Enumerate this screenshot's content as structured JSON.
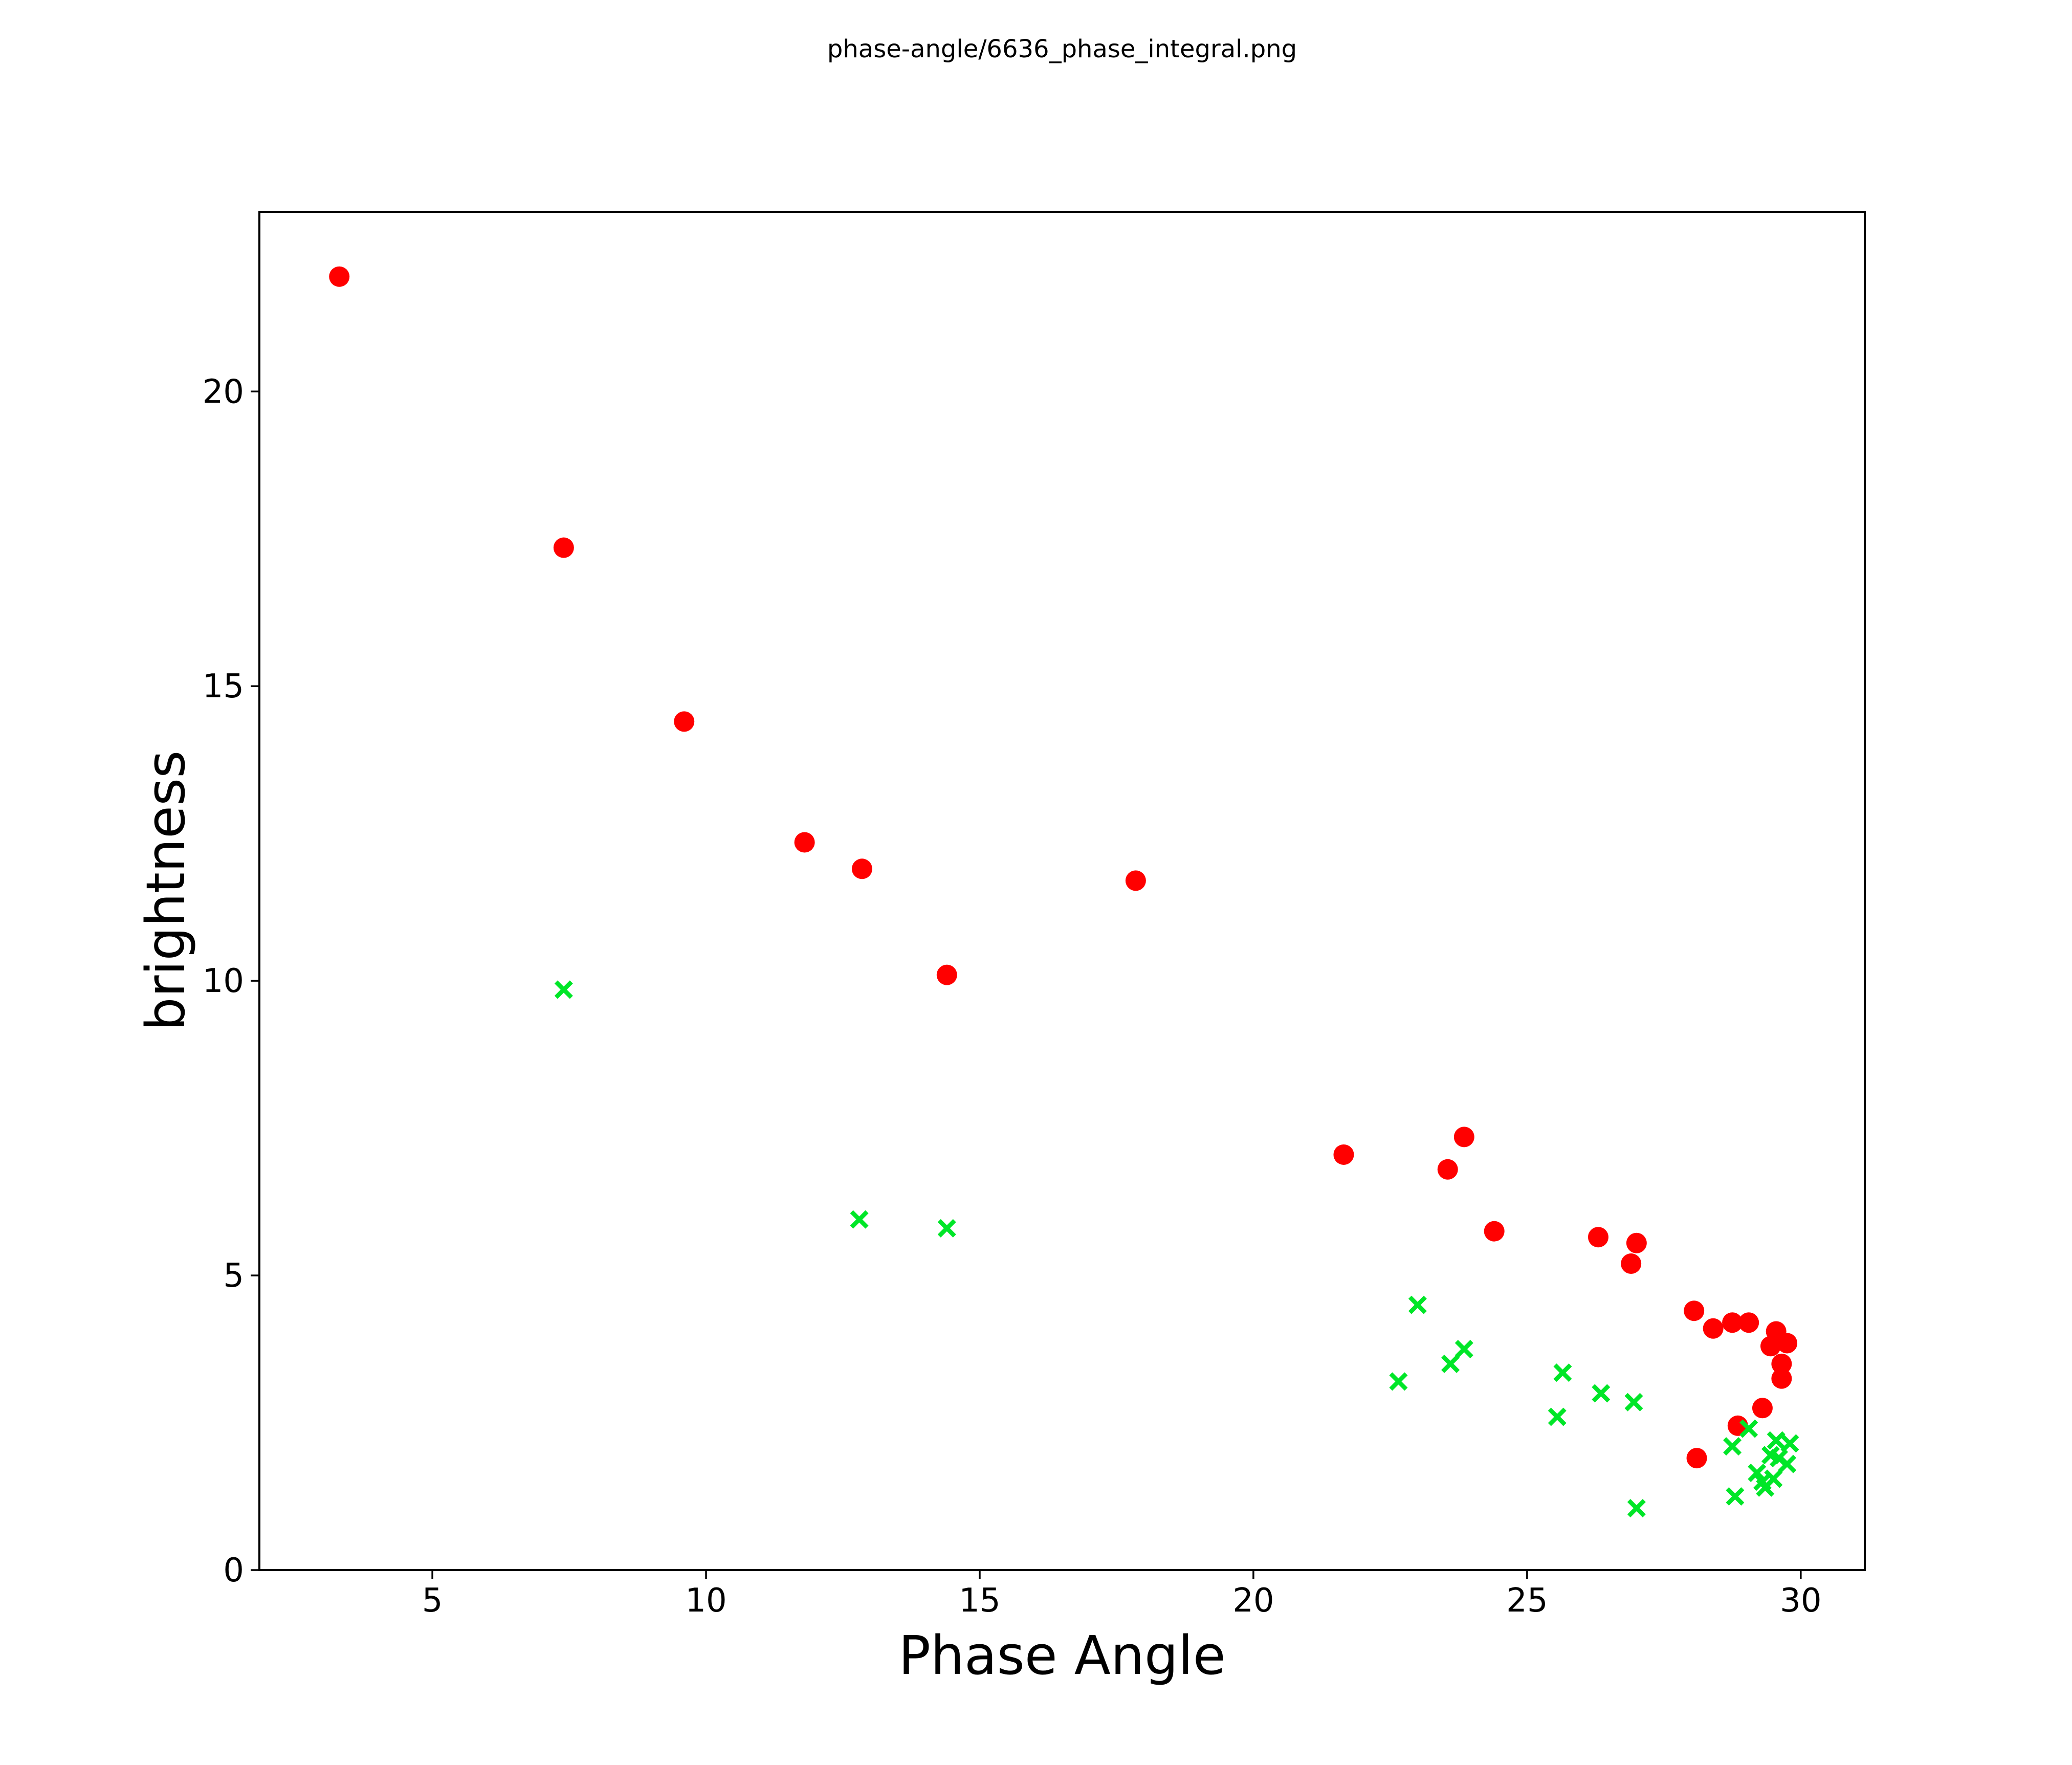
{
  "chart_data": {
    "type": "scatter",
    "title": "phase-angle/6636_phase_integral.png",
    "xlabel": "Phase Angle",
    "ylabel": "brightness",
    "xlim": [
      1.84,
      31.17
    ],
    "ylim": [
      0,
      23.05
    ],
    "xticks": [
      5,
      10,
      15,
      20,
      25,
      30
    ],
    "yticks": [
      0,
      5,
      10,
      15,
      20
    ],
    "grid": false,
    "legend": null,
    "background": "#ffffff",
    "series": [
      {
        "name": "red-circles",
        "marker": "circle",
        "color": "#ff0000",
        "points": [
          [
            3.3,
            21.95
          ],
          [
            7.4,
            17.35
          ],
          [
            9.6,
            14.4
          ],
          [
            11.8,
            12.35
          ],
          [
            12.85,
            11.9
          ],
          [
            14.4,
            10.1
          ],
          [
            17.85,
            11.7
          ],
          [
            21.65,
            7.05
          ],
          [
            23.55,
            6.8
          ],
          [
            23.85,
            7.35
          ],
          [
            24.4,
            5.75
          ],
          [
            26.3,
            5.65
          ],
          [
            27.0,
            5.55
          ],
          [
            26.9,
            5.2
          ],
          [
            28.05,
            4.4
          ],
          [
            28.4,
            4.1
          ],
          [
            28.75,
            4.2
          ],
          [
            29.05,
            4.2
          ],
          [
            29.55,
            4.05
          ],
          [
            29.75,
            3.85
          ],
          [
            29.45,
            3.8
          ],
          [
            29.65,
            3.5
          ],
          [
            29.65,
            3.25
          ],
          [
            29.3,
            2.75
          ],
          [
            28.85,
            2.45
          ],
          [
            28.1,
            1.9
          ]
        ]
      },
      {
        "name": "green-crosses",
        "marker": "x",
        "color": "#00e628",
        "points": [
          [
            7.4,
            9.85
          ],
          [
            12.8,
            5.95
          ],
          [
            14.4,
            5.8
          ],
          [
            23.0,
            4.5
          ],
          [
            22.65,
            3.2
          ],
          [
            23.6,
            3.5
          ],
          [
            23.85,
            3.75
          ],
          [
            25.65,
            3.35
          ],
          [
            25.55,
            2.6
          ],
          [
            26.35,
            3.0
          ],
          [
            26.95,
            2.85
          ],
          [
            27.0,
            1.05
          ],
          [
            29.05,
            2.4
          ],
          [
            28.75,
            2.1
          ],
          [
            29.55,
            2.2
          ],
          [
            29.8,
            2.15
          ],
          [
            29.45,
            1.95
          ],
          [
            29.6,
            1.9
          ],
          [
            29.75,
            1.8
          ],
          [
            29.2,
            1.65
          ],
          [
            29.3,
            1.5
          ],
          [
            29.5,
            1.55
          ],
          [
            29.35,
            1.4
          ],
          [
            28.8,
            1.25
          ]
        ]
      }
    ]
  }
}
